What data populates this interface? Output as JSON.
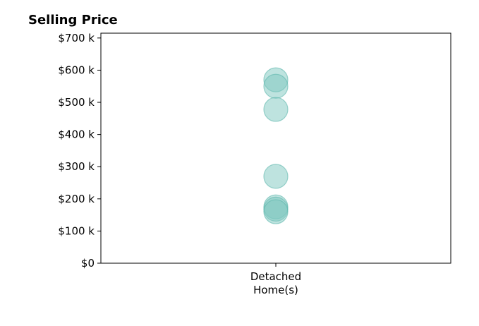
{
  "chart_data": {
    "type": "scatter",
    "title": "Selling Price",
    "xlabel": "",
    "ylabel": "",
    "categories": [
      "Detached\nHome(s)"
    ],
    "ylim": [
      0,
      715000
    ],
    "yticks": [
      0,
      100000,
      200000,
      300000,
      400000,
      500000,
      600000,
      700000
    ],
    "ytick_labels": [
      "$0",
      "$100 k",
      "$200 k",
      "$300 k",
      "$400 k",
      "$500 k",
      "$600 k",
      "$700 k"
    ],
    "series": [
      {
        "category": "Detached\nHome(s)",
        "values": [
          570000,
          550000,
          478000,
          270000,
          175000,
          168000,
          160000
        ]
      }
    ],
    "grid": false,
    "legend": "none",
    "point_color": "#7ec8c0",
    "point_edge_color": "#5fb8ae"
  }
}
